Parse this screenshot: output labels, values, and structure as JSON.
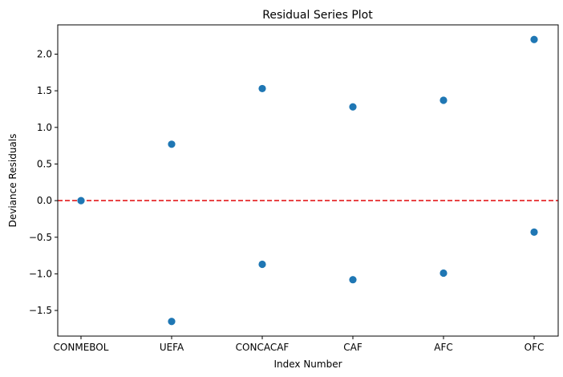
{
  "chart_data": {
    "type": "scatter",
    "title": "Residual Series Plot",
    "xlabel": "Index Number",
    "ylabel": "Deviance Residuals",
    "categories": [
      "CONMEBOL",
      "UEFA",
      "CONCACAF",
      "CAF",
      "AFC",
      "OFC"
    ],
    "points": [
      {
        "x": "CONMEBOL",
        "y": 0.0
      },
      {
        "x": "UEFA",
        "y": 0.77
      },
      {
        "x": "UEFA",
        "y": -1.65
      },
      {
        "x": "CONCACAF",
        "y": 1.53
      },
      {
        "x": "CONCACAF",
        "y": -0.87
      },
      {
        "x": "CAF",
        "y": 1.28
      },
      {
        "x": "CAF",
        "y": -1.08
      },
      {
        "x": "AFC",
        "y": 1.37
      },
      {
        "x": "AFC",
        "y": -0.99
      },
      {
        "x": "OFC",
        "y": 2.2
      },
      {
        "x": "OFC",
        "y": -0.43
      }
    ],
    "yticks": [
      "-1.5",
      "-1.0",
      "-0.5",
      "0.0",
      "0.5",
      "1.0",
      "1.5",
      "2.0"
    ],
    "ylim": [
      -1.85,
      2.4
    ],
    "reference_line": {
      "y": 0,
      "color": "#e41a1c",
      "style": "dashed"
    },
    "marker_color": "#1f77b4",
    "grid": false
  }
}
